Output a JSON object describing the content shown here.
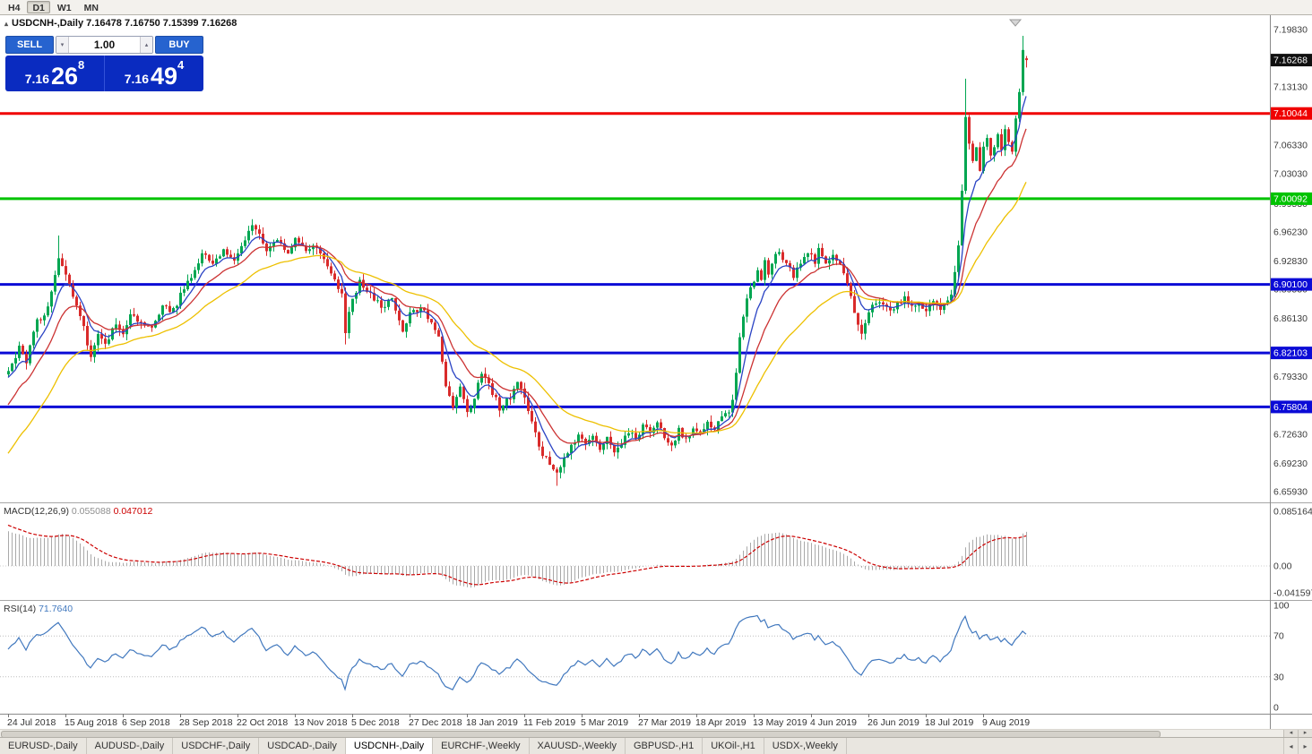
{
  "toolbar": {
    "timeframes": [
      {
        "label": "H4",
        "active": false
      },
      {
        "label": "D1",
        "active": true
      },
      {
        "label": "W1",
        "active": false
      },
      {
        "label": "MN",
        "active": false
      }
    ]
  },
  "chart": {
    "title_line": "USDCNH-,Daily  7.16478 7.16750 7.15399 7.16268",
    "collapse_icon": "▴",
    "trade_panel": {
      "sell_label": "SELL",
      "buy_label": "BUY",
      "volume": "1.00",
      "spin_down_icon": "▾",
      "spin_up_icon": "▴",
      "bid": {
        "big": "7.16",
        "pips": "26",
        "point": "8"
      },
      "ask": {
        "big": "7.16",
        "pips": "49",
        "point": "4"
      }
    }
  },
  "chart_data": {
    "type": "candlestick",
    "symbol": "USDCNH",
    "timeframe": "Daily",
    "current_ohlc": {
      "open": 7.16478,
      "high": 7.1675,
      "low": 7.15399,
      "close": 7.16268
    },
    "price_axis": {
      "min": 6.6509,
      "max": 7.2098,
      "labels": [
        "7.19830",
        "7.13130",
        "7.06330",
        "7.03030",
        "6.99530",
        "6.96230",
        "6.92830",
        "6.89530",
        "6.86130",
        "6.79330",
        "6.72630",
        "6.69230",
        "6.65930"
      ]
    },
    "last_price": {
      "value": 7.16268,
      "label": "7.16268",
      "color": "#101010"
    },
    "hlines": [
      {
        "price": 7.10044,
        "label": "7.10044",
        "color": "#f00000",
        "width": 3
      },
      {
        "price": 7.00092,
        "label": "7.00092",
        "color": "#00c300",
        "width": 3
      },
      {
        "price": 6.901,
        "label": "6.90100",
        "color": "#0b0bd6",
        "width": 3
      },
      {
        "price": 6.82103,
        "label": "6.82103",
        "color": "#0b0bd6",
        "width": 3
      },
      {
        "price": 6.75804,
        "label": "6.75804",
        "color": "#0b0bd6",
        "width": 3
      }
    ],
    "candles": {
      "count": 285,
      "bull_color": "#00a651",
      "bear_color": "#d92b2b",
      "noise": 0.008,
      "wick": 0.0075,
      "seed": 77,
      "anchors": [
        [
          0,
          6.8
        ],
        [
          3,
          6.828
        ],
        [
          5,
          6.812
        ],
        [
          8,
          6.858
        ],
        [
          11,
          6.872
        ],
        [
          13,
          6.912
        ],
        [
          14,
          6.93
        ],
        [
          16,
          6.916
        ],
        [
          18,
          6.89
        ],
        [
          20,
          6.864
        ],
        [
          23,
          6.818
        ],
        [
          25,
          6.846
        ],
        [
          27,
          6.834
        ],
        [
          30,
          6.854
        ],
        [
          32,
          6.842
        ],
        [
          34,
          6.868
        ],
        [
          37,
          6.855
        ],
        [
          40,
          6.85
        ],
        [
          43,
          6.878
        ],
        [
          46,
          6.87
        ],
        [
          48,
          6.888
        ],
        [
          51,
          6.91
        ],
        [
          54,
          6.936
        ],
        [
          57,
          6.926
        ],
        [
          60,
          6.94
        ],
        [
          63,
          6.93
        ],
        [
          66,
          6.952
        ],
        [
          68,
          6.97
        ],
        [
          70,
          6.96
        ],
        [
          72,
          6.94
        ],
        [
          75,
          6.954
        ],
        [
          78,
          6.94
        ],
        [
          80,
          6.956
        ],
        [
          83,
          6.942
        ],
        [
          86,
          6.947
        ],
        [
          88,
          6.928
        ],
        [
          91,
          6.906
        ],
        [
          93,
          6.888
        ],
        [
          94,
          6.844
        ],
        [
          96,
          6.886
        ],
        [
          98,
          6.904
        ],
        [
          101,
          6.892
        ],
        [
          104,
          6.874
        ],
        [
          107,
          6.886
        ],
        [
          110,
          6.849
        ],
        [
          112,
          6.866
        ],
        [
          115,
          6.874
        ],
        [
          118,
          6.854
        ],
        [
          120,
          6.84
        ],
        [
          122,
          6.786
        ],
        [
          124,
          6.76
        ],
        [
          126,
          6.78
        ],
        [
          128,
          6.75
        ],
        [
          130,
          6.77
        ],
        [
          132,
          6.798
        ],
        [
          134,
          6.786
        ],
        [
          137,
          6.756
        ],
        [
          140,
          6.77
        ],
        [
          142,
          6.784
        ],
        [
          144,
          6.77
        ],
        [
          146,
          6.74
        ],
        [
          148,
          6.71
        ],
        [
          151,
          6.694
        ],
        [
          153,
          6.678
        ],
        [
          155,
          6.698
        ],
        [
          157,
          6.712
        ],
        [
          159,
          6.722
        ],
        [
          161,
          6.712
        ],
        [
          163,
          6.726
        ],
        [
          165,
          6.708
        ],
        [
          167,
          6.72
        ],
        [
          169,
          6.704
        ],
        [
          171,
          6.716
        ],
        [
          173,
          6.73
        ],
        [
          175,
          6.722
        ],
        [
          177,
          6.736
        ],
        [
          179,
          6.728
        ],
        [
          181,
          6.74
        ],
        [
          183,
          6.722
        ],
        [
          185,
          6.712
        ],
        [
          187,
          6.73
        ],
        [
          189,
          6.718
        ],
        [
          191,
          6.736
        ],
        [
          193,
          6.728
        ],
        [
          195,
          6.74
        ],
        [
          197,
          6.732
        ],
        [
          199,
          6.746
        ],
        [
          201,
          6.754
        ],
        [
          202,
          6.77
        ],
        [
          203,
          6.798
        ],
        [
          204,
          6.836
        ],
        [
          205,
          6.866
        ],
        [
          206,
          6.888
        ],
        [
          207,
          6.9
        ],
        [
          208,
          6.906
        ],
        [
          209,
          6.916
        ],
        [
          210,
          6.91
        ],
        [
          211,
          6.926
        ],
        [
          212,
          6.916
        ],
        [
          213,
          6.928
        ],
        [
          215,
          6.938
        ],
        [
          217,
          6.924
        ],
        [
          219,
          6.91
        ],
        [
          221,
          6.926
        ],
        [
          223,
          6.936
        ],
        [
          225,
          6.928
        ],
        [
          226,
          6.946
        ],
        [
          228,
          6.922
        ],
        [
          230,
          6.934
        ],
        [
          232,
          6.922
        ],
        [
          234,
          6.902
        ],
        [
          236,
          6.866
        ],
        [
          238,
          6.846
        ],
        [
          240,
          6.872
        ],
        [
          242,
          6.882
        ],
        [
          244,
          6.876
        ],
        [
          246,
          6.87
        ],
        [
          248,
          6.878
        ],
        [
          250,
          6.884
        ],
        [
          252,
          6.874
        ],
        [
          254,
          6.88
        ],
        [
          256,
          6.872
        ],
        [
          258,
          6.882
        ],
        [
          260,
          6.874
        ],
        [
          262,
          6.882
        ],
        [
          263,
          6.892
        ],
        [
          264,
          6.914
        ],
        [
          265,
          6.944
        ],
        [
          266,
          7.008
        ],
        [
          267,
          7.094
        ],
        [
          268,
          7.064
        ],
        [
          269,
          7.042
        ],
        [
          270,
          7.062
        ],
        [
          271,
          7.036
        ],
        [
          272,
          7.058
        ],
        [
          273,
          7.068
        ],
        [
          274,
          7.048
        ],
        [
          275,
          7.06
        ],
        [
          276,
          7.076
        ],
        [
          277,
          7.058
        ],
        [
          278,
          7.084
        ],
        [
          279,
          7.068
        ],
        [
          280,
          7.058
        ],
        [
          281,
          7.092
        ],
        [
          282,
          7.128
        ],
        [
          283,
          7.172
        ],
        [
          284,
          7.16268
        ]
      ],
      "overrides": {
        "14": {
          "h": 6.958
        },
        "68": {
          "h": 6.977
        },
        "94": {
          "l": 6.831
        },
        "153": {
          "l": 6.666
        },
        "267": {
          "h": 7.141
        },
        "283": {
          "h": 7.191
        },
        "284": {
          "o": 7.16478,
          "h": 7.1675,
          "l": 7.15399,
          "c": 7.16268
        }
      }
    },
    "ma_lines": [
      {
        "name": "ma-fast-blue",
        "period": 7,
        "seed": 6.79,
        "color": "#2b44c4"
      },
      {
        "name": "ma-mid-red",
        "period": 15,
        "seed": 6.755,
        "color": "#cc3333"
      },
      {
        "name": "ma-slow-yellow",
        "period": 34,
        "seed": 6.698,
        "color": "#edc000"
      }
    ],
    "date_axis": {
      "start_index": 0,
      "step": 16,
      "labels": [
        "24 Jul 2018",
        "15 Aug 2018",
        "6 Sep 2018",
        "28 Sep 2018",
        "22 Oct 2018",
        "13 Nov 2018",
        "5 Dec 2018",
        "27 Dec 2018",
        "18 Jan 2019",
        "11 Feb 2019",
        "5 Mar 2019",
        "27 Mar 2019",
        "18 Apr 2019",
        "13 May 2019",
        "4 Jun 2019",
        "26 Jun 2019",
        "18 Jul 2019",
        "9 Aug 2019"
      ]
    },
    "macd": {
      "name": "MACD(12,26,9)",
      "value_main": "0.055088",
      "value_signal": "0.047012",
      "fast": 12,
      "slow": 26,
      "signal_period": 9,
      "seed_fast": 6.782,
      "seed_slow": 6.725,
      "seed_signal": 0.066,
      "hist_color": "#a9a9a9",
      "signal_color": "#cc0000",
      "scale_labels": [
        {
          "v": 0.085164,
          "t": "0.085164"
        },
        {
          "v": 0,
          "t": "0.00"
        },
        {
          "v": -0.041597,
          "t": "-0.041597"
        }
      ]
    },
    "rsi": {
      "name": "RSI(14)",
      "value": "71.7640",
      "period": 14,
      "color": "#4178be",
      "levels": [
        {
          "v": 100,
          "t": "100"
        },
        {
          "v": 70,
          "t": "70"
        },
        {
          "v": 30,
          "t": "30"
        },
        {
          "v": 0,
          "t": "0"
        }
      ]
    }
  },
  "scrollbar": {
    "left_icon": "◂",
    "right_icon": "▸"
  },
  "tab_nav": {
    "left_icon": "◂",
    "right_icon": "▸"
  },
  "tabs": [
    {
      "label": "EURUSD-,Daily",
      "active": false
    },
    {
      "label": "AUDUSD-,Daily",
      "active": false
    },
    {
      "label": "USDCHF-,Daily",
      "active": false
    },
    {
      "label": "USDCAD-,Daily",
      "active": false
    },
    {
      "label": "USDCNH-,Daily",
      "active": true
    },
    {
      "label": "EURCHF-,Weekly",
      "active": false
    },
    {
      "label": "XAUUSD-,Weekly",
      "active": false
    },
    {
      "label": "GBPUSD-,H1",
      "active": false
    },
    {
      "label": "UKOil-,H1",
      "active": false
    },
    {
      "label": "USDX-,Weekly",
      "active": false
    }
  ]
}
